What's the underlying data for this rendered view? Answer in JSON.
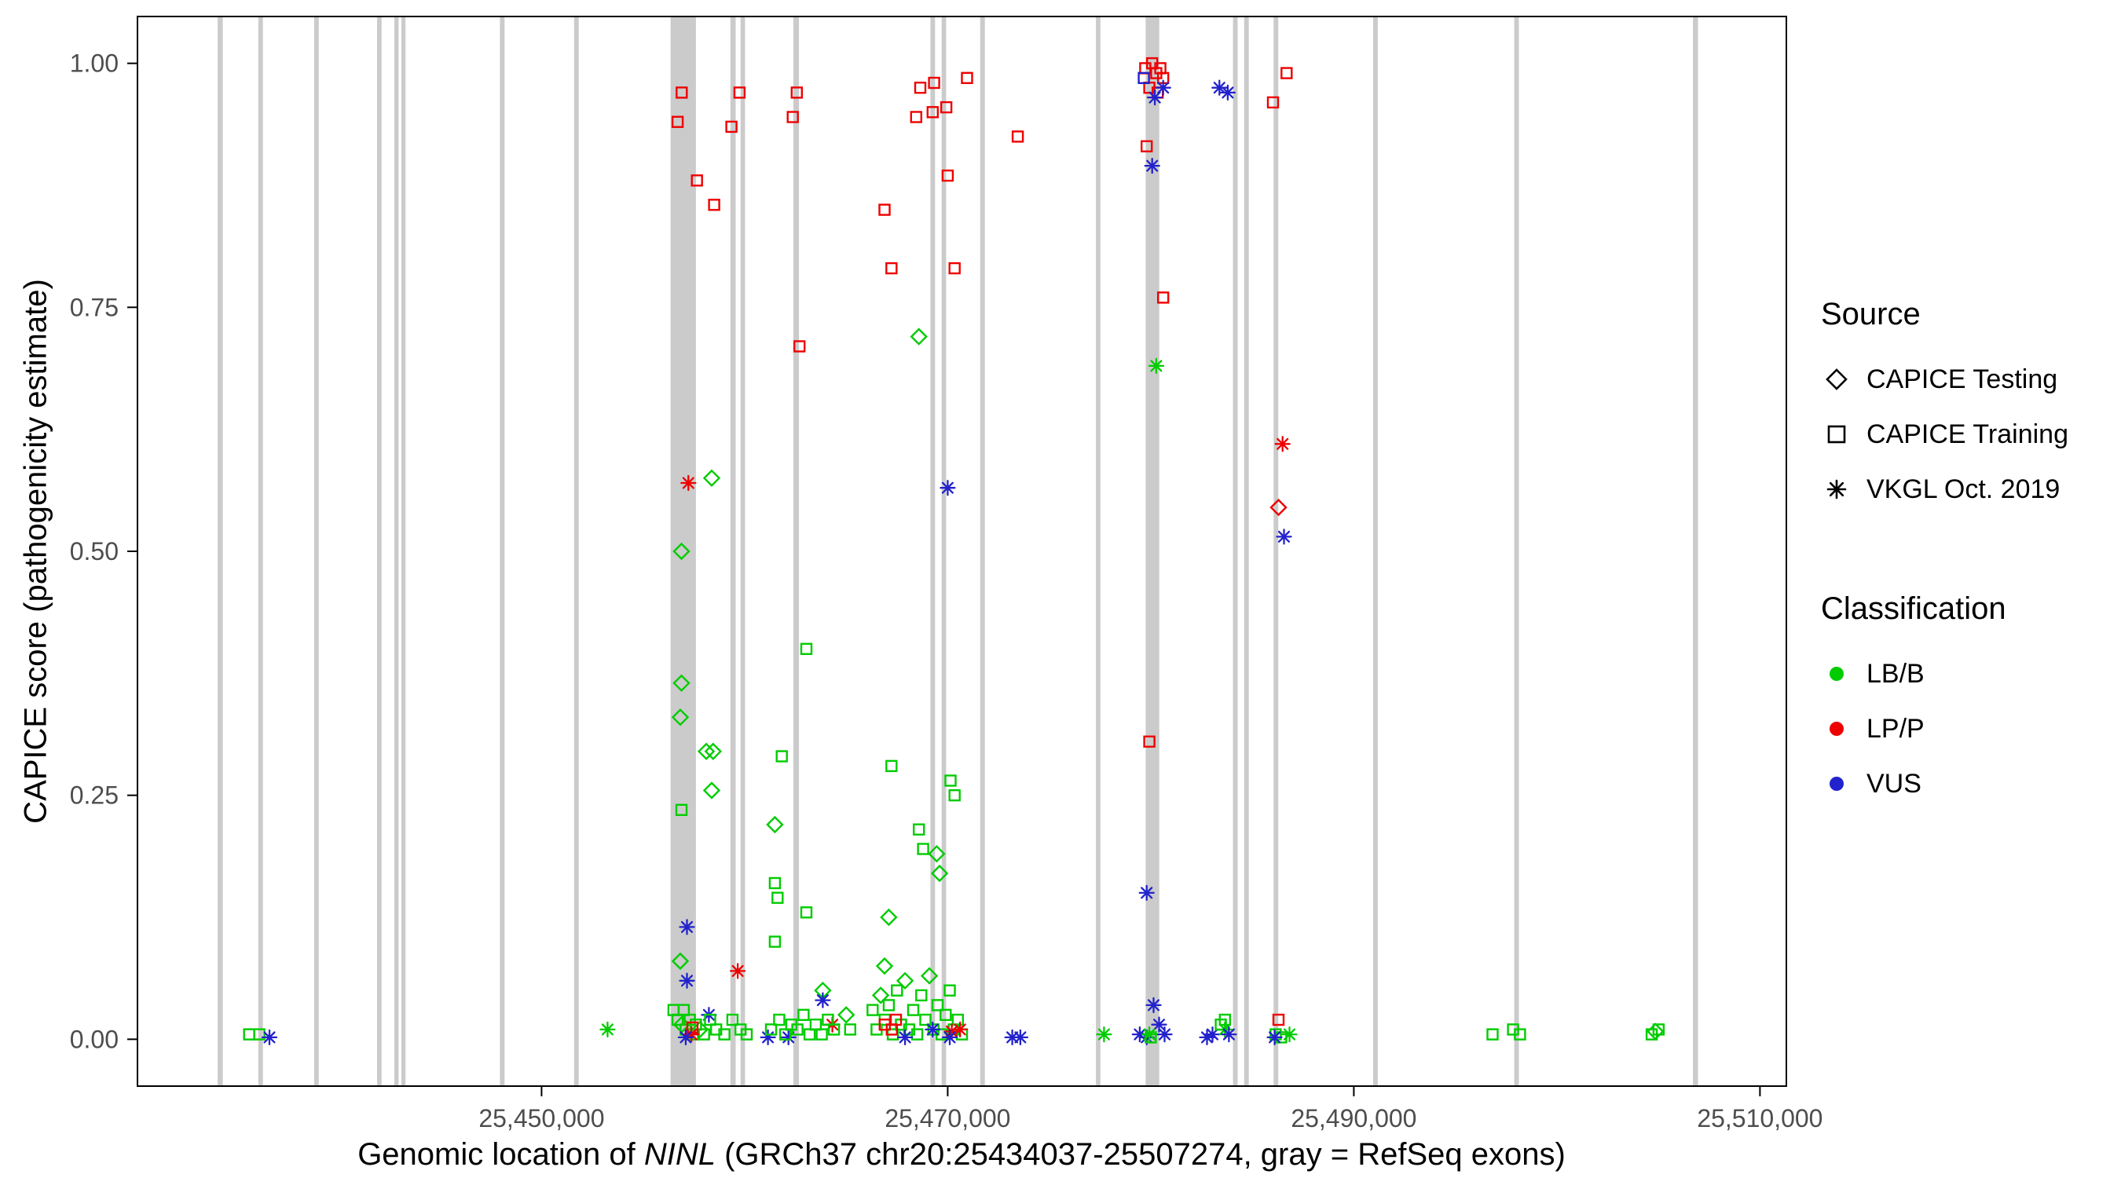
{
  "chart_data": {
    "type": "scatter",
    "title": "",
    "xlabel_parts": {
      "prefix": "Genomic location of ",
      "gene": "NINL",
      "suffix": " (GRCh37 chr20:25434037-25507274, gray = RefSeq exons)"
    },
    "ylabel": "CAPICE score (pathogenicity estimate)",
    "x_range": [
      25430100,
      25511300
    ],
    "y_range_expanded": [
      -0.048,
      1.048
    ],
    "x_ticks": {
      "values": [
        25450000,
        25470000,
        25490000,
        25510000
      ],
      "labels": [
        "25,450,000",
        "25,470,000",
        "25,490,000",
        "25,510,000"
      ]
    },
    "y_ticks": {
      "values": [
        0,
        0.25,
        0.5,
        0.75,
        1
      ],
      "labels": [
        "0.00",
        "0.25",
        "0.50",
        "0.75",
        "1.00"
      ]
    },
    "grid": "off",
    "legend_position": "right",
    "colors": {
      "lbb": "#00cc00",
      "lpp": "#ee0000",
      "vus": "#2222cc",
      "exon": "#cbcbcb",
      "panel_border": "#000000",
      "tick_text": "#4d4d4d"
    },
    "exons": [
      [
        25434050,
        25434300
      ],
      [
        25436050,
        25436280
      ],
      [
        25438800,
        25439030
      ],
      [
        25441900,
        25442120
      ],
      [
        25442750,
        25442960
      ],
      [
        25443100,
        25443300
      ],
      [
        25447950,
        25448180
      ],
      [
        25451600,
        25451830
      ],
      [
        25456350,
        25457600
      ],
      [
        25459300,
        25459560
      ],
      [
        25459800,
        25460020
      ],
      [
        25462400,
        25462680
      ],
      [
        25469150,
        25469380
      ],
      [
        25469700,
        25469920
      ],
      [
        25471600,
        25471830
      ],
      [
        25477300,
        25477520
      ],
      [
        25479750,
        25480420
      ],
      [
        25484050,
        25484280
      ],
      [
        25484600,
        25484830
      ],
      [
        25486050,
        25486280
      ],
      [
        25490950,
        25491180
      ],
      [
        25497900,
        25498130
      ],
      [
        25506700,
        25506950
      ]
    ],
    "points": {
      "columns": [
        "position",
        "score",
        "source",
        "classification"
      ],
      "source_codes": {
        "T": "CAPICE Testing",
        "R": "CAPICE Training",
        "V": "VKGL Oct. 2019"
      },
      "class_codes": {
        "LB": "LB/B",
        "LP": "LP/P",
        "VUS": "VUS"
      },
      "rows": [
        [
          25435600,
          0.005,
          "R",
          "LB"
        ],
        [
          25436100,
          0.005,
          "R",
          "LB"
        ],
        [
          25436600,
          0.002,
          "V",
          "VUS"
        ],
        [
          25453250,
          0.01,
          "V",
          "LB"
        ],
        [
          25456900,
          0.97,
          "R",
          "LP"
        ],
        [
          25456700,
          0.94,
          "R",
          "LP"
        ],
        [
          25457650,
          0.88,
          "R",
          "LP"
        ],
        [
          25458500,
          0.855,
          "R",
          "LP"
        ],
        [
          25459350,
          0.935,
          "R",
          "LP"
        ],
        [
          25459750,
          0.97,
          "R",
          "LP"
        ],
        [
          25457230,
          0.57,
          "V",
          "LP"
        ],
        [
          25458380,
          0.575,
          "T",
          "LB"
        ],
        [
          25456890,
          0.5,
          "T",
          "LB"
        ],
        [
          25456890,
          0.365,
          "T",
          "LB"
        ],
        [
          25456830,
          0.33,
          "T",
          "LB"
        ],
        [
          25456890,
          0.235,
          "R",
          "LB"
        ],
        [
          25458110,
          0.295,
          "T",
          "LB"
        ],
        [
          25458450,
          0.295,
          "T",
          "LB"
        ],
        [
          25458380,
          0.255,
          "T",
          "LB"
        ],
        [
          25457160,
          0.115,
          "V",
          "VUS"
        ],
        [
          25456830,
          0.08,
          "T",
          "LB"
        ],
        [
          25457160,
          0.06,
          "V",
          "VUS"
        ],
        [
          25459660,
          0.07,
          "V",
          "LP"
        ],
        [
          25458240,
          0.025,
          "V",
          "VUS"
        ],
        [
          25456500,
          0.03,
          "R",
          "LB"
        ],
        [
          25456700,
          0.02,
          "R",
          "LB"
        ],
        [
          25456900,
          0.015,
          "T",
          "LB"
        ],
        [
          25457000,
          0.03,
          "R",
          "LB"
        ],
        [
          25457100,
          0.01,
          "R",
          "LB"
        ],
        [
          25457300,
          0.02,
          "R",
          "LB"
        ],
        [
          25457450,
          0.005,
          "R",
          "LB"
        ],
        [
          25457600,
          0.015,
          "R",
          "LB"
        ],
        [
          25457800,
          0.01,
          "T",
          "LB"
        ],
        [
          25458000,
          0.005,
          "R",
          "LB"
        ],
        [
          25458300,
          0.02,
          "R",
          "LB"
        ],
        [
          25458600,
          0.01,
          "R",
          "LB"
        ],
        [
          25459000,
          0.005,
          "R",
          "LB"
        ],
        [
          25459400,
          0.02,
          "R",
          "LB"
        ],
        [
          25459800,
          0.01,
          "R",
          "LB"
        ],
        [
          25460100,
          0.005,
          "R",
          "LB"
        ],
        [
          25457430,
          0.012,
          "R",
          "LP"
        ],
        [
          25457380,
          0.005,
          "V",
          "LP"
        ],
        [
          25457100,
          0.002,
          "V",
          "VUS"
        ],
        [
          25461830,
          0.29,
          "R",
          "LB"
        ],
        [
          25461490,
          0.22,
          "T",
          "LB"
        ],
        [
          25463040,
          0.4,
          "R",
          "LB"
        ],
        [
          25462700,
          0.71,
          "R",
          "LP"
        ],
        [
          25462370,
          0.945,
          "R",
          "LP"
        ],
        [
          25462570,
          0.97,
          "R",
          "LP"
        ],
        [
          25461490,
          0.16,
          "R",
          "LB"
        ],
        [
          25461620,
          0.145,
          "R",
          "LB"
        ],
        [
          25463040,
          0.13,
          "R",
          "LB"
        ],
        [
          25461490,
          0.1,
          "R",
          "LB"
        ],
        [
          25463850,
          0.05,
          "T",
          "LB"
        ],
        [
          25461150,
          0.002,
          "V",
          "VUS"
        ],
        [
          25462160,
          0.002,
          "V",
          "VUS"
        ],
        [
          25463850,
          0.04,
          "V",
          "VUS"
        ],
        [
          25464320,
          0.015,
          "V",
          "LP"
        ],
        [
          25461300,
          0.01,
          "R",
          "LB"
        ],
        [
          25461700,
          0.02,
          "R",
          "LB"
        ],
        [
          25462000,
          0.005,
          "R",
          "LB"
        ],
        [
          25462300,
          0.015,
          "R",
          "LB"
        ],
        [
          25462600,
          0.01,
          "R",
          "LB"
        ],
        [
          25462900,
          0.025,
          "R",
          "LB"
        ],
        [
          25463200,
          0.005,
          "R",
          "LB"
        ],
        [
          25463500,
          0.015,
          "R",
          "LB"
        ],
        [
          25463800,
          0.005,
          "R",
          "LB"
        ],
        [
          25464100,
          0.02,
          "R",
          "LB"
        ],
        [
          25464400,
          0.01,
          "R",
          "LB"
        ],
        [
          25465000,
          0.025,
          "T",
          "LB"
        ],
        [
          25465200,
          0.01,
          "R",
          "LB"
        ],
        [
          25466890,
          0.85,
          "R",
          "LP"
        ],
        [
          25467230,
          0.79,
          "R",
          "LP"
        ],
        [
          25468450,
          0.945,
          "R",
          "LP"
        ],
        [
          25468650,
          0.975,
          "R",
          "LP"
        ],
        [
          25469330,
          0.98,
          "R",
          "LP"
        ],
        [
          25469260,
          0.95,
          "R",
          "LP"
        ],
        [
          25469930,
          0.955,
          "R",
          "LP"
        ],
        [
          25470000,
          0.885,
          "R",
          "LP"
        ],
        [
          25470340,
          0.79,
          "R",
          "LP"
        ],
        [
          25470950,
          0.985,
          "R",
          "LP"
        ],
        [
          25468580,
          0.72,
          "T",
          "LB"
        ],
        [
          25470000,
          0.565,
          "V",
          "VUS"
        ],
        [
          25467230,
          0.28,
          "R",
          "LB"
        ],
        [
          25470140,
          0.265,
          "R",
          "LB"
        ],
        [
          25470340,
          0.25,
          "R",
          "LB"
        ],
        [
          25468580,
          0.215,
          "R",
          "LB"
        ],
        [
          25468790,
          0.195,
          "R",
          "LB"
        ],
        [
          25469460,
          0.19,
          "T",
          "LB"
        ],
        [
          25469600,
          0.17,
          "T",
          "LB"
        ],
        [
          25467100,
          0.125,
          "T",
          "LB"
        ],
        [
          25466890,
          0.075,
          "T",
          "LB"
        ],
        [
          25466300,
          0.03,
          "R",
          "LB"
        ],
        [
          25466500,
          0.01,
          "R",
          "LB"
        ],
        [
          25466700,
          0.045,
          "T",
          "LB"
        ],
        [
          25466900,
          0.02,
          "R",
          "LB"
        ],
        [
          25467100,
          0.035,
          "R",
          "LB"
        ],
        [
          25467300,
          0.005,
          "R",
          "LB"
        ],
        [
          25467500,
          0.05,
          "R",
          "LB"
        ],
        [
          25467700,
          0.015,
          "R",
          "LB"
        ],
        [
          25467900,
          0.06,
          "T",
          "LB"
        ],
        [
          25468100,
          0.01,
          "R",
          "LB"
        ],
        [
          25468300,
          0.03,
          "R",
          "LB"
        ],
        [
          25468500,
          0.005,
          "R",
          "LB"
        ],
        [
          25468700,
          0.045,
          "R",
          "LB"
        ],
        [
          25468900,
          0.02,
          "R",
          "LB"
        ],
        [
          25469100,
          0.065,
          "T",
          "LB"
        ],
        [
          25469300,
          0.01,
          "R",
          "LB"
        ],
        [
          25469500,
          0.035,
          "R",
          "LB"
        ],
        [
          25469700,
          0.005,
          "R",
          "LB"
        ],
        [
          25469900,
          0.025,
          "R",
          "LB"
        ],
        [
          25470100,
          0.05,
          "R",
          "LB"
        ],
        [
          25470300,
          0.01,
          "R",
          "LB"
        ],
        [
          25470500,
          0.02,
          "R",
          "LB"
        ],
        [
          25470700,
          0.005,
          "R",
          "LB"
        ],
        [
          25466900,
          0.015,
          "R",
          "LP"
        ],
        [
          25467250,
          0.01,
          "R",
          "LP"
        ],
        [
          25467450,
          0.02,
          "R",
          "LP"
        ],
        [
          25470610,
          0.01,
          "V",
          "LP"
        ],
        [
          25470200,
          0.008,
          "V",
          "LP"
        ],
        [
          25469260,
          0.01,
          "V",
          "VUS"
        ],
        [
          25467900,
          0.002,
          "V",
          "VUS"
        ],
        [
          25470100,
          0.002,
          "V",
          "VUS"
        ],
        [
          25473450,
          0.925,
          "R",
          "LP"
        ],
        [
          25473180,
          0.002,
          "V",
          "VUS"
        ],
        [
          25473580,
          0.002,
          "V",
          "VUS"
        ],
        [
          25477700,
          0.005,
          "V",
          "LB"
        ],
        [
          25479730,
          0.995,
          "R",
          "LP"
        ],
        [
          25480070,
          1.0,
          "R",
          "LP"
        ],
        [
          25480270,
          0.99,
          "R",
          "LP"
        ],
        [
          25480470,
          0.995,
          "R",
          "LP"
        ],
        [
          25480610,
          0.985,
          "R",
          "LP"
        ],
        [
          25479930,
          0.975,
          "R",
          "LP"
        ],
        [
          25480340,
          0.97,
          "R",
          "LP"
        ],
        [
          25479660,
          0.985,
          "R",
          "VUS"
        ],
        [
          25480200,
          0.965,
          "V",
          "VUS"
        ],
        [
          25480610,
          0.975,
          "V",
          "VUS"
        ],
        [
          25479800,
          0.915,
          "R",
          "LP"
        ],
        [
          25480070,
          0.895,
          "V",
          "VUS"
        ],
        [
          25480610,
          0.76,
          "R",
          "LP"
        ],
        [
          25480270,
          0.69,
          "V",
          "LB"
        ],
        [
          25479930,
          0.305,
          "R",
          "LP"
        ],
        [
          25479800,
          0.15,
          "V",
          "VUS"
        ],
        [
          25479460,
          0.005,
          "V",
          "VUS"
        ],
        [
          25479800,
          0.002,
          "V",
          "VUS"
        ],
        [
          25480140,
          0.035,
          "V",
          "VUS"
        ],
        [
          25480410,
          0.015,
          "V",
          "VUS"
        ],
        [
          25480680,
          0.005,
          "V",
          "VUS"
        ],
        [
          25479930,
          0.005,
          "V",
          "LB"
        ],
        [
          25480000,
          0.002,
          "R",
          "LB"
        ],
        [
          25483380,
          0.975,
          "V",
          "VUS"
        ],
        [
          25483790,
          0.97,
          "V",
          "VUS"
        ],
        [
          25482770,
          0.002,
          "V",
          "VUS"
        ],
        [
          25483040,
          0.005,
          "V",
          "VUS"
        ],
        [
          25483450,
          0.015,
          "R",
          "LB"
        ],
        [
          25483650,
          0.02,
          "R",
          "LB"
        ],
        [
          25483650,
          0.01,
          "V",
          "LB"
        ],
        [
          25483850,
          0.005,
          "V",
          "VUS"
        ],
        [
          25486020,
          0.96,
          "R",
          "LP"
        ],
        [
          25486690,
          0.99,
          "R",
          "LP"
        ],
        [
          25486490,
          0.61,
          "V",
          "LP"
        ],
        [
          25486290,
          0.545,
          "T",
          "LP"
        ],
        [
          25486560,
          0.515,
          "V",
          "VUS"
        ],
        [
          25486290,
          0.02,
          "R",
          "LP"
        ],
        [
          25486150,
          0.005,
          "R",
          "LB"
        ],
        [
          25486420,
          0.002,
          "R",
          "LB"
        ],
        [
          25486830,
          0.005,
          "V",
          "LB"
        ],
        [
          25486100,
          0.002,
          "V",
          "VUS"
        ],
        [
          25496830,
          0.005,
          "R",
          "LB"
        ],
        [
          25497840,
          0.01,
          "R",
          "LB"
        ],
        [
          25498180,
          0.005,
          "R",
          "LB"
        ],
        [
          25504670,
          0.005,
          "R",
          "LB"
        ],
        [
          25505010,
          0.01,
          "R",
          "LB"
        ],
        [
          25504850,
          0.008,
          "T",
          "LB"
        ]
      ]
    }
  },
  "legend": {
    "source": {
      "title": "Source",
      "items": [
        {
          "label": "CAPICE Testing",
          "glyph": "diamond"
        },
        {
          "label": "CAPICE Training",
          "glyph": "square"
        },
        {
          "label": "VKGL Oct. 2019",
          "glyph": "asterisk"
        }
      ]
    },
    "classification": {
      "title": "Classification",
      "items": [
        {
          "label": "LB/B",
          "color": "#00cc00"
        },
        {
          "label": "LP/P",
          "color": "#ee0000"
        },
        {
          "label": "VUS",
          "color": "#2222cc"
        }
      ]
    }
  }
}
